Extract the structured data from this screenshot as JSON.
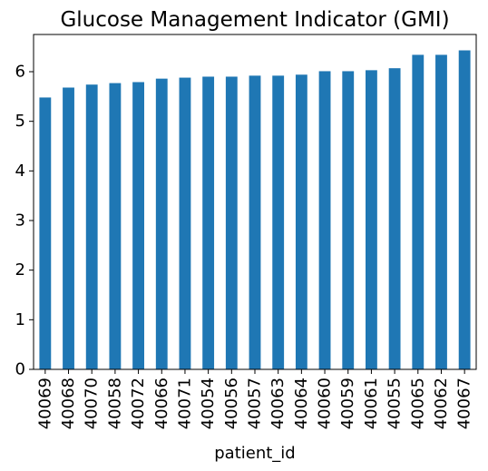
{
  "chart_data": {
    "type": "bar",
    "title": "Glucose Management Indicator (GMI)",
    "xlabel": "patient_id",
    "ylabel": "",
    "categories": [
      "40069",
      "40068",
      "40070",
      "40058",
      "40072",
      "40066",
      "40071",
      "40054",
      "40056",
      "40057",
      "40063",
      "40064",
      "40060",
      "40059",
      "40061",
      "40055",
      "40065",
      "40062",
      "40067"
    ],
    "values": [
      5.48,
      5.68,
      5.74,
      5.77,
      5.79,
      5.86,
      5.88,
      5.9,
      5.9,
      5.92,
      5.92,
      5.94,
      6.01,
      6.01,
      6.03,
      6.07,
      6.34,
      6.34,
      6.43
    ],
    "ylim": [
      0,
      6.75
    ],
    "yticks": [
      0,
      1,
      2,
      3,
      4,
      5,
      6
    ],
    "grid": false,
    "bar_color": "#1f77b4"
  }
}
